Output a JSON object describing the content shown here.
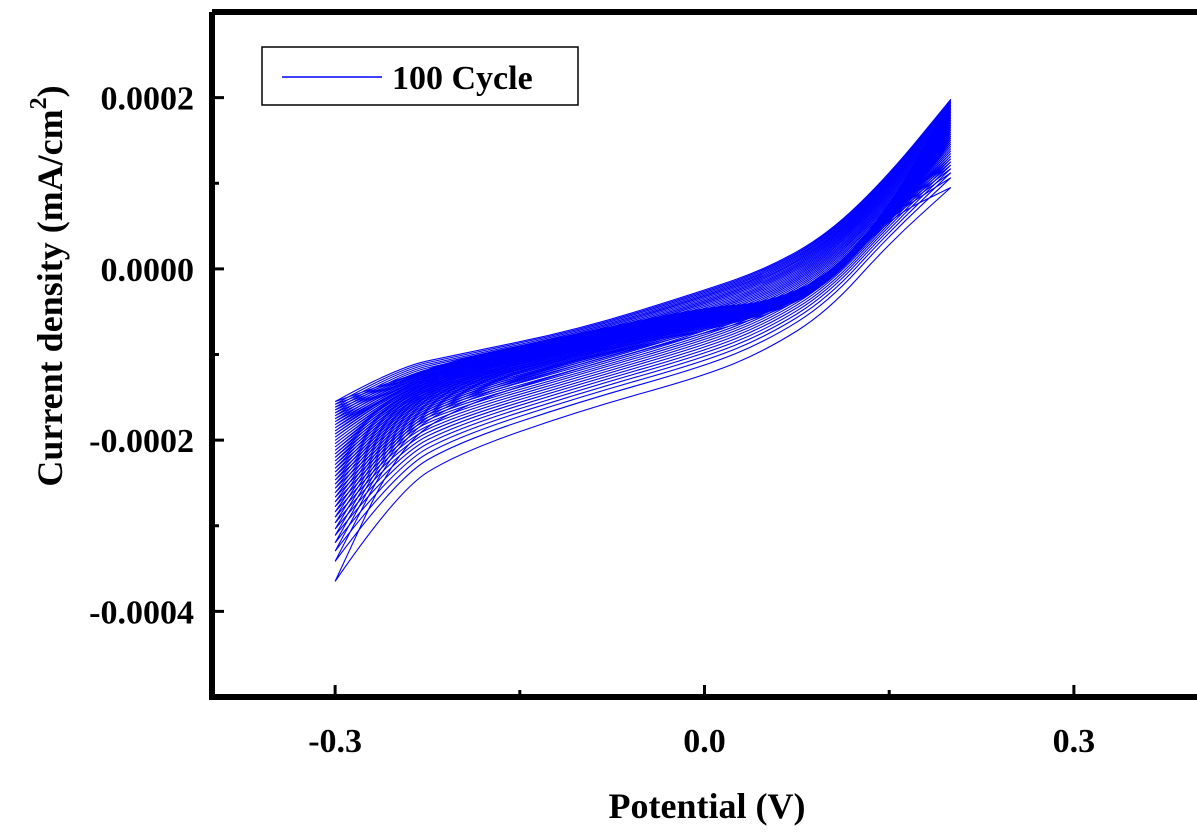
{
  "chart_data": {
    "type": "line",
    "title": "",
    "xlabel": "Potential (V)",
    "ylabel": "Current density (mA/cm",
    "ylabel_superscript": "2",
    "ylabel_close": ")",
    "xlim": [
      -0.4,
      0.4
    ],
    "ylim": [
      -0.0005,
      0.0003
    ],
    "x_ticks": [
      -0.3,
      0.0,
      0.3
    ],
    "x_tick_labels": [
      "-0.3",
      "0.0",
      "0.3"
    ],
    "y_ticks": [
      -0.0004,
      -0.0002,
      0.0,
      0.0002
    ],
    "y_tick_labels": [
      "-0.0004",
      "-0.0002",
      "0.0000",
      "0.0002"
    ],
    "grid": false,
    "legend": {
      "position": "top-left",
      "entries": [
        "100 Cycle"
      ]
    },
    "series": [
      {
        "name": "100 Cycle",
        "color": "#0000FF",
        "cycles": 100,
        "potential_window": [
          -0.3,
          0.2
        ],
        "first_cycle": {
          "anodic_x": [
            -0.3,
            -0.25,
            -0.2,
            -0.1,
            0.0,
            0.05,
            0.1,
            0.15,
            0.2
          ],
          "anodic_y": [
            -0.000365,
            -0.00026,
            -0.000215,
            -0.000165,
            -0.000125,
            -9.5e-05,
            -5e-05,
            3e-05,
            9.5e-05
          ],
          "cathodic_x": [
            0.2,
            0.15,
            0.1,
            0.05,
            0.0,
            -0.1,
            -0.2,
            -0.25,
            -0.3
          ],
          "cathodic_y": [
            9.5e-05,
            6e-05,
            -2e-05,
            -5.5e-05,
            -7.5e-05,
            -0.000115,
            -0.00016,
            -0.00021,
            -0.000365
          ]
        },
        "last_cycle": {
          "anodic_x": [
            -0.3,
            -0.25,
            -0.2,
            -0.1,
            0.0,
            0.05,
            0.1,
            0.15,
            0.2
          ],
          "anodic_y": [
            -0.000155,
            -0.000115,
            -0.0001,
            -7e-05,
            -2.5e-05,
            0.0,
            4e-05,
            0.00011,
            0.000198
          ],
          "cathodic_x": [
            0.2,
            0.15,
            0.1,
            0.05,
            0.0,
            -0.1,
            -0.2,
            -0.25,
            -0.3
          ],
          "cathodic_y": [
            0.000198,
            7e-05,
            -1e-05,
            -4e-05,
            -4.5e-05,
            -7.5e-05,
            -0.000105,
            -0.00013,
            -0.000155
          ]
        }
      }
    ]
  }
}
